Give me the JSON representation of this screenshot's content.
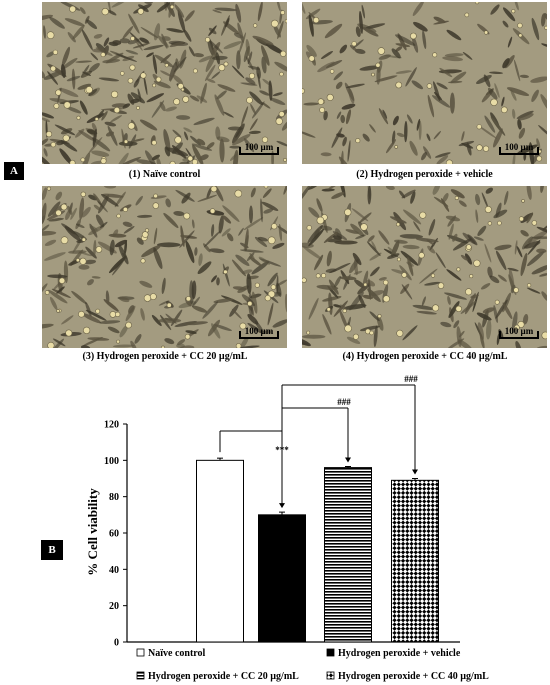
{
  "panel_a": {
    "label": "A",
    "images": [
      {
        "caption": "(1) Naïve control",
        "scale_bar": "100 µm"
      },
      {
        "caption": "(2) Hydrogen peroxide + vehicle",
        "scale_bar": "100 µm"
      },
      {
        "caption": "(3) Hydrogen peroxide + CC 20 µg/mL",
        "scale_bar": "100 µm"
      },
      {
        "caption": "(4) Hydrogen peroxide + CC 40 µg/mL",
        "scale_bar": "100 µm"
      }
    ]
  },
  "panel_b": {
    "label": "B"
  },
  "chart_data": {
    "type": "bar",
    "ylabel": "% Cell viability",
    "ylim": [
      0,
      120
    ],
    "yticks": [
      0,
      20,
      40,
      60,
      80,
      100,
      120
    ],
    "series": [
      {
        "name": "Naïve control",
        "value": 100,
        "error": 1.2,
        "pattern": "white"
      },
      {
        "name": "Hydrogen peroxide + vehicle",
        "value": 70,
        "error": 1.5,
        "pattern": "black"
      },
      {
        "name": "Hydrogen peroxide + CC 20 µg/mL",
        "value": 96,
        "error": 0.6,
        "pattern": "horizontal-lines"
      },
      {
        "name": "Hydrogen peroxide + CC 40 µg/mL",
        "value": 89,
        "error": 1.0,
        "pattern": "checker"
      }
    ],
    "significance": [
      {
        "from": 0,
        "to": 1,
        "label": "***"
      },
      {
        "from": 1,
        "to": 2,
        "label": "###"
      },
      {
        "from": 1,
        "to": 3,
        "label": "###"
      }
    ],
    "legend_position": "bottom"
  },
  "colors": {
    "bar_black": "#000000",
    "micrograph_bg": "#9a9276",
    "cell": "#3f3a2c",
    "nucleus": "#e8dca6"
  }
}
